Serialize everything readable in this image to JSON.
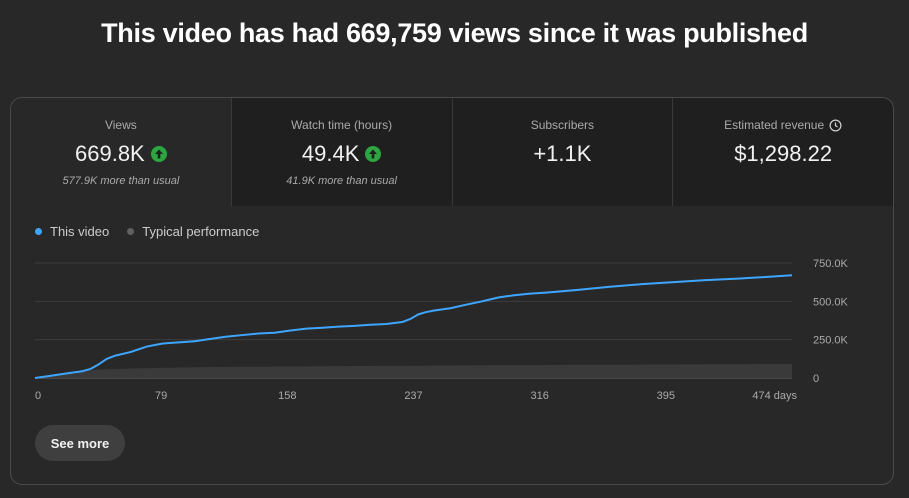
{
  "headline": "This video has had 669,759 views since it was published",
  "metrics": [
    {
      "label": "Views",
      "value": "669.8K",
      "sub": "577.9K more than usual",
      "trend": "up"
    },
    {
      "label": "Watch time (hours)",
      "value": "49.4K",
      "sub": "41.9K more than usual",
      "trend": "up"
    },
    {
      "label": "Subscribers",
      "value": "+1.1K",
      "sub": ""
    },
    {
      "label": "Estimated revenue",
      "value": "$1,298.22",
      "sub": "",
      "icon": "clock-icon"
    }
  ],
  "legend": [
    {
      "label": "This video",
      "color": "#3ea6ff"
    },
    {
      "label": "Typical performance",
      "color": "#606060"
    }
  ],
  "chart_data": {
    "type": "area",
    "xlabel": "",
    "ylabel": "",
    "x_ticks": [
      "0",
      "79",
      "158",
      "237",
      "316",
      "395",
      "474 days"
    ],
    "x_tick_values": [
      0,
      79,
      158,
      237,
      316,
      395,
      474
    ],
    "y_ticks": [
      "0",
      "250.0K",
      "500.0K",
      "750.0K"
    ],
    "y_tick_values": [
      0,
      250000,
      500000,
      750000
    ],
    "xlim": [
      0,
      474
    ],
    "ylim": [
      0,
      750000
    ],
    "grid": true,
    "legend_position": "top-left",
    "series": [
      {
        "name": "This video",
        "color": "#3ea6ff",
        "x": [
          0,
          10,
          20,
          30,
          35,
          40,
          45,
          50,
          60,
          70,
          80,
          90,
          100,
          110,
          120,
          130,
          140,
          150,
          160,
          170,
          180,
          190,
          200,
          210,
          220,
          230,
          235,
          240,
          245,
          250,
          260,
          270,
          280,
          290,
          300,
          310,
          320,
          340,
          360,
          380,
          400,
          420,
          440,
          460,
          474
        ],
        "y": [
          0,
          15000,
          30000,
          45000,
          60000,
          90000,
          125000,
          145000,
          170000,
          205000,
          225000,
          232000,
          240000,
          255000,
          270000,
          280000,
          290000,
          295000,
          310000,
          322000,
          328000,
          335000,
          340000,
          347000,
          352000,
          365000,
          385000,
          415000,
          430000,
          440000,
          455000,
          478000,
          500000,
          525000,
          540000,
          550000,
          557000,
          575000,
          595000,
          612000,
          625000,
          638000,
          648000,
          660000,
          670000
        ]
      },
      {
        "name": "Typical performance",
        "color": "#606060",
        "x": [
          0,
          20,
          40,
          60,
          79,
          100,
          130,
          158,
          200,
          237,
          280,
          316,
          360,
          395,
          440,
          474
        ],
        "y": [
          0,
          35000,
          55000,
          62000,
          66000,
          70000,
          73000,
          75000,
          78000,
          80000,
          83000,
          85000,
          87000,
          88000,
          90000,
          92000
        ]
      }
    ]
  },
  "see_more": "See more"
}
